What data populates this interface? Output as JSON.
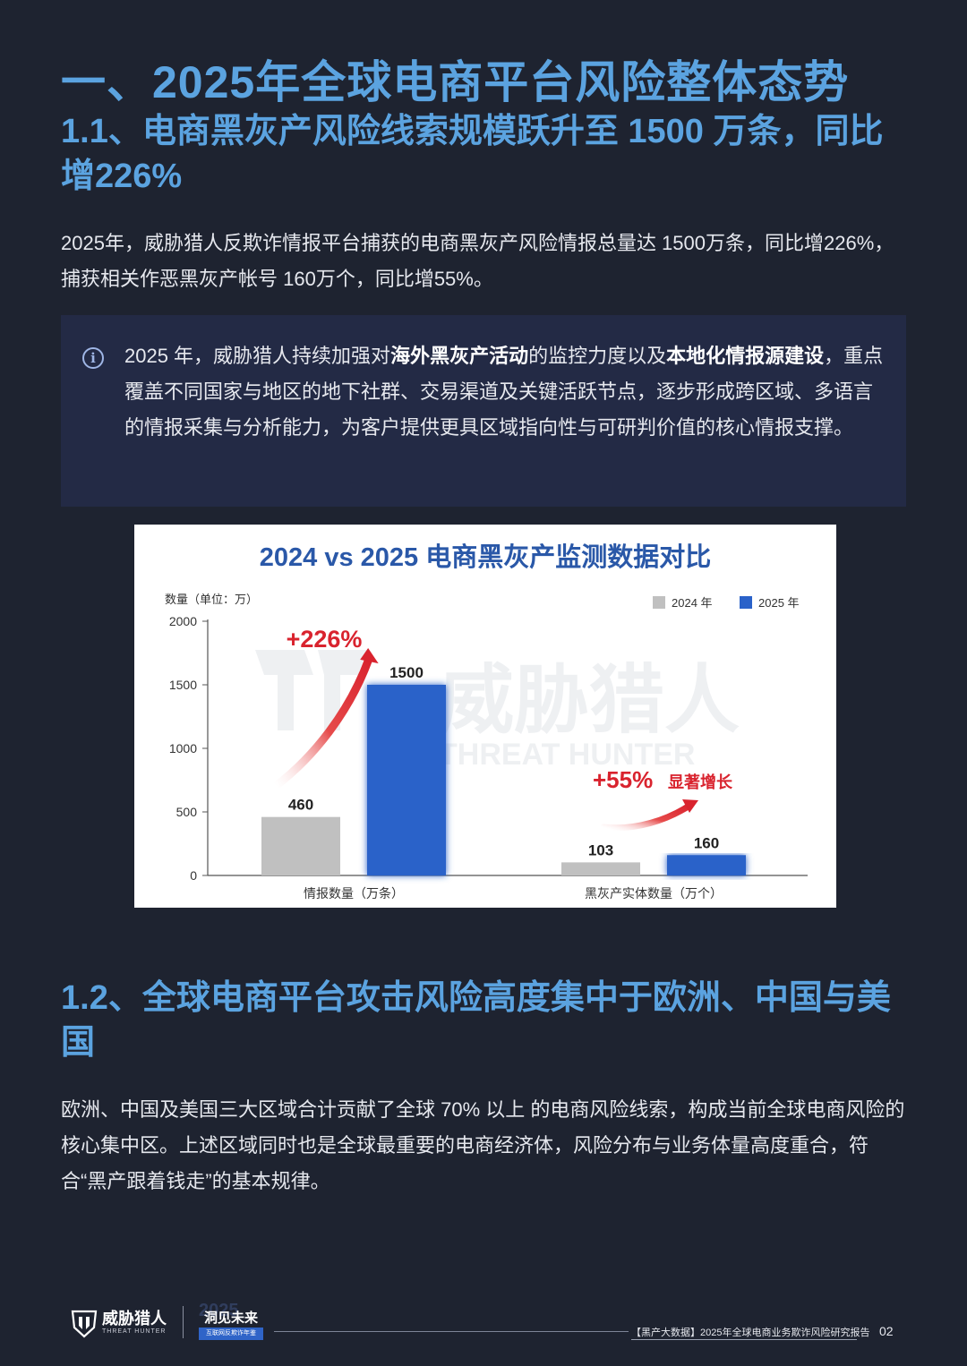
{
  "heading": "一、2025年全球电商平台风险整体态势",
  "section1": {
    "title": "1.1、电商黑灰产风险线索规模跃升至 1500 万条，同比增226%",
    "paragraph": "2025年，威胁猎人反欺诈情报平台捕获的电商黑灰产风险情报总量达 1500万条，同比增226%，捕获相关作恶黑灰产帐号 160万个，同比增55%。"
  },
  "infobox": {
    "icon": "info-icon",
    "t1": "2025 年，威胁猎人持续加强对",
    "b1": "海外黑灰产活动",
    "t2": "的监控力度以及",
    "b2": "本地化情报源建设",
    "t3": "，重点覆盖不同国家与地区的地下社群、交易渠道及关键活跃节点，逐步形成跨区域、多语言的情报采集与分析能力，为客户提供更具区域指向性与可研判价值的核心情报支撑。"
  },
  "chart_data": {
    "type": "bar",
    "title": "2024 vs 2025 电商黑灰产监测数据对比",
    "ylabel": "数量（单位：万）",
    "ylim": [
      0,
      2000
    ],
    "yticks": [
      "0",
      "500",
      "1000",
      "1500",
      "2000"
    ],
    "categories": [
      "情报数量（万条）",
      "黑灰产实体数量（万个）"
    ],
    "series": [
      {
        "name": "2024 年",
        "values": [
          460,
          103
        ],
        "color": "#c0c0c0"
      },
      {
        "name": "2025 年",
        "values": [
          1500,
          160
        ],
        "color": "#2a62c9"
      }
    ],
    "value_labels": [
      [
        "460",
        "103"
      ],
      [
        "1500",
        "160"
      ]
    ],
    "annotations": {
      "growth1": "+226%",
      "growth2": "+55%",
      "growth2_suffix": "显著增长"
    },
    "legend": "top-right",
    "grid": false,
    "watermark_cn": "威胁猎人",
    "watermark_en": "THREAT HUNTER"
  },
  "section2": {
    "title": "1.2、全球电商平台攻击风险高度集中于欧洲、中国与美国",
    "paragraph": "欧洲、中国及美国三大区域合计贡献了全球 70% 以上 的电商风险线索，构成当前全球电商风险的核心集中区。上述区域同时也是全球最重要的电商经济体，风险分布与业务体量高度重合，符合“黑产跟着钱走”的基本规律。"
  },
  "footer": {
    "brand_cn": "威胁猎人",
    "brand_en": "THREAT HUNTER",
    "event_year": "2025",
    "event_title": "洞见未来",
    "event_sub": "互联网反欺诈年鉴",
    "report_title": "【黑产大数据】2025年全球电商业务欺诈风险研究报告",
    "page": "02"
  },
  "colors": {
    "background": "#1e2330",
    "heading": "#5ba3e0",
    "infobox": "#232a45",
    "bar2024": "#c0c0c0",
    "bar2025": "#2a62c9",
    "accent_red": "#d9232e"
  }
}
